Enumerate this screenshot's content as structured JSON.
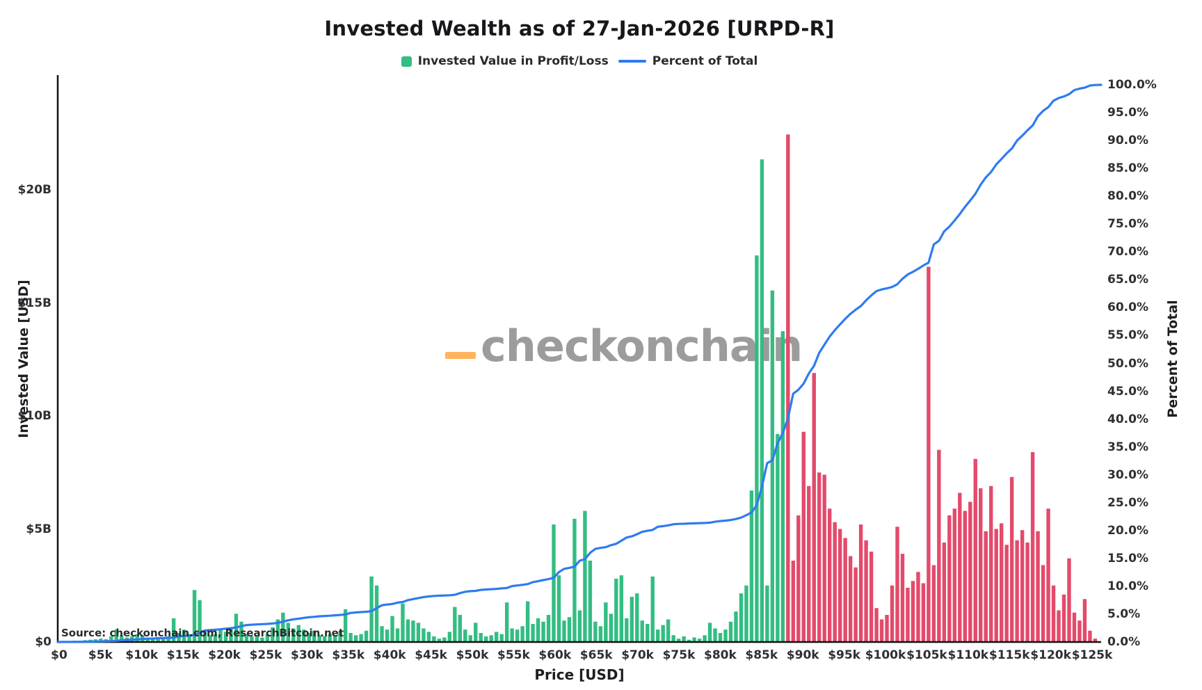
{
  "title": "Invested Wealth as of 27-Jan-2026 [URPD-R]",
  "legend": {
    "profit_label": "Invested Value in Profit/Loss",
    "line_label": "Percent of Total"
  },
  "axes": {
    "x_title": "Price [USD]",
    "y_left_title": "Invested Value [USD]",
    "y_right_title": "Percent of Total",
    "x_ticks": [
      {
        "k": 0,
        "label": "$0"
      },
      {
        "k": 5,
        "label": "$5k"
      },
      {
        "k": 10,
        "label": "$10k"
      },
      {
        "k": 15,
        "label": "$15k"
      },
      {
        "k": 20,
        "label": "$20k"
      },
      {
        "k": 25,
        "label": "$25k"
      },
      {
        "k": 30,
        "label": "$30k"
      },
      {
        "k": 35,
        "label": "$35k"
      },
      {
        "k": 40,
        "label": "$40k"
      },
      {
        "k": 45,
        "label": "$45k"
      },
      {
        "k": 50,
        "label": "$50k"
      },
      {
        "k": 55,
        "label": "$55k"
      },
      {
        "k": 60,
        "label": "$60k"
      },
      {
        "k": 65,
        "label": "$65k"
      },
      {
        "k": 70,
        "label": "$70k"
      },
      {
        "k": 75,
        "label": "$75k"
      },
      {
        "k": 80,
        "label": "$80k"
      },
      {
        "k": 85,
        "label": "$85k"
      },
      {
        "k": 90,
        "label": "$90k"
      },
      {
        "k": 95,
        "label": "$95k"
      },
      {
        "k": 100,
        "label": "$100k"
      },
      {
        "k": 105,
        "label": "$105k"
      },
      {
        "k": 110,
        "label": "$110k"
      },
      {
        "k": 115,
        "label": "$115k"
      },
      {
        "k": 120,
        "label": "$120k"
      },
      {
        "k": 125,
        "label": "$125k"
      }
    ],
    "y_left_ticks": [
      {
        "v": 0,
        "label": "$0"
      },
      {
        "v": 5,
        "label": "$5B"
      },
      {
        "v": 10,
        "label": "$10B"
      },
      {
        "v": 15,
        "label": "$15B"
      },
      {
        "v": 20,
        "label": "$20B"
      }
    ],
    "y_right_ticks": [
      {
        "v": 0,
        "label": "0.0%"
      },
      {
        "v": 5,
        "label": "5.0%"
      },
      {
        "v": 10,
        "label": "10.0%"
      },
      {
        "v": 15,
        "label": "15.0%"
      },
      {
        "v": 20,
        "label": "20.0%"
      },
      {
        "v": 25,
        "label": "25.0%"
      },
      {
        "v": 30,
        "label": "30.0%"
      },
      {
        "v": 35,
        "label": "35.0%"
      },
      {
        "v": 40,
        "label": "40.0%"
      },
      {
        "v": 45,
        "label": "45.0%"
      },
      {
        "v": 50,
        "label": "50.0%"
      },
      {
        "v": 55,
        "label": "55.0%"
      },
      {
        "v": 60,
        "label": "60.0%"
      },
      {
        "v": 65,
        "label": "65.0%"
      },
      {
        "v": 70,
        "label": "70.0%"
      },
      {
        "v": 75,
        "label": "75.0%"
      },
      {
        "v": 80,
        "label": "80.0%"
      },
      {
        "v": 85,
        "label": "85.0%"
      },
      {
        "v": 90,
        "label": "90.0%"
      },
      {
        "v": 95,
        "label": "95.0%"
      },
      {
        "v": 100,
        "label": "100.0%"
      }
    ]
  },
  "source_text": "Source: checkonchain.com, ResearchBitcoin.net",
  "watermark": {
    "underscore": "_",
    "text": "checkonchain",
    "underscore_color": "#ffb45c",
    "text_color": "#9c9c9c"
  },
  "colors": {
    "profit": "#33bd82",
    "loss": "#e34a6b",
    "line": "#2e7bf0",
    "axis": "#111111",
    "title_text": "#17171c",
    "tick_text": "#2f2f33"
  },
  "chart_data": {
    "type": "bar+line",
    "title": "Invested Wealth as of 27-Jan-2026 [URPD-R]",
    "xlabel": "Price [USD]",
    "ylabel_left": "Invested Value [USD]",
    "ylabel_right": "Percent of Total",
    "x_start_usd": 0,
    "bin_width_usd": 630,
    "xlim_usd": [
      0,
      126000
    ],
    "ylim_left_billions": [
      0,
      25
    ],
    "ylim_right_percent": [
      0,
      101.7
    ],
    "grid": false,
    "legend_position": "top-center",
    "value_unit": "billion USD",
    "profit_loss_boundary_usd": 88200,
    "first_loss_bin_index": 140,
    "bar_series_name": "Invested Value in Profit/Loss",
    "line_series": {
      "name": "Percent of Total",
      "derivation": "cumulative_sum_of_bar_values_as_percent_of_total",
      "range_percent": [
        0,
        100
      ]
    },
    "values_billions": [
      0.04,
      0.05,
      0.04,
      0.06,
      0.05,
      0.08,
      0.1,
      0.12,
      0.15,
      0.12,
      0.25,
      0.55,
      0.3,
      0.2,
      0.25,
      0.35,
      0.3,
      0.2,
      0.15,
      0.22,
      0.18,
      0.25,
      1.05,
      0.4,
      0.55,
      0.35,
      2.3,
      1.85,
      0.45,
      0.3,
      0.35,
      0.6,
      0.45,
      0.65,
      1.25,
      0.9,
      0.35,
      0.25,
      0.3,
      0.2,
      0.35,
      0.65,
      1.0,
      1.3,
      0.85,
      0.6,
      0.75,
      0.55,
      0.4,
      0.5,
      0.3,
      0.25,
      0.35,
      0.3,
      0.45,
      1.45,
      0.4,
      0.3,
      0.35,
      0.5,
      2.9,
      2.5,
      0.7,
      0.55,
      1.15,
      0.6,
      1.7,
      1.0,
      0.95,
      0.85,
      0.6,
      0.45,
      0.25,
      0.15,
      0.2,
      0.45,
      1.55,
      1.2,
      0.55,
      0.3,
      0.85,
      0.4,
      0.25,
      0.3,
      0.45,
      0.35,
      1.75,
      0.6,
      0.55,
      0.7,
      1.8,
      0.8,
      1.05,
      0.9,
      1.2,
      5.2,
      2.95,
      0.95,
      1.1,
      5.45,
      1.4,
      5.8,
      3.6,
      0.9,
      0.7,
      1.75,
      1.25,
      2.8,
      2.95,
      1.05,
      2.0,
      2.15,
      0.95,
      0.8,
      2.9,
      0.55,
      0.75,
      1.0,
      0.3,
      0.15,
      0.25,
      0.1,
      0.2,
      0.15,
      0.3,
      0.85,
      0.6,
      0.4,
      0.55,
      0.9,
      1.35,
      2.15,
      2.5,
      6.7,
      17.1,
      21.35,
      2.5,
      15.55,
      9.2,
      13.75,
      22.45,
      3.6,
      5.6,
      9.3,
      6.9,
      11.9,
      7.5,
      7.4,
      5.9,
      5.3,
      5.0,
      4.6,
      3.8,
      3.3,
      5.2,
      4.5,
      4.0,
      1.5,
      1.0,
      1.2,
      2.5,
      5.1,
      3.9,
      2.4,
      2.7,
      3.1,
      2.6,
      16.6,
      3.4,
      8.5,
      4.4,
      5.6,
      5.9,
      6.6,
      5.8,
      6.2,
      8.1,
      6.8,
      4.9,
      6.9,
      5.0,
      5.25,
      4.3,
      7.3,
      4.5,
      4.95,
      4.4,
      8.4,
      4.9,
      3.4,
      5.9,
      2.5,
      1.4,
      2.1,
      3.7,
      1.3,
      0.95,
      1.9,
      0.5,
      0.15
    ]
  }
}
